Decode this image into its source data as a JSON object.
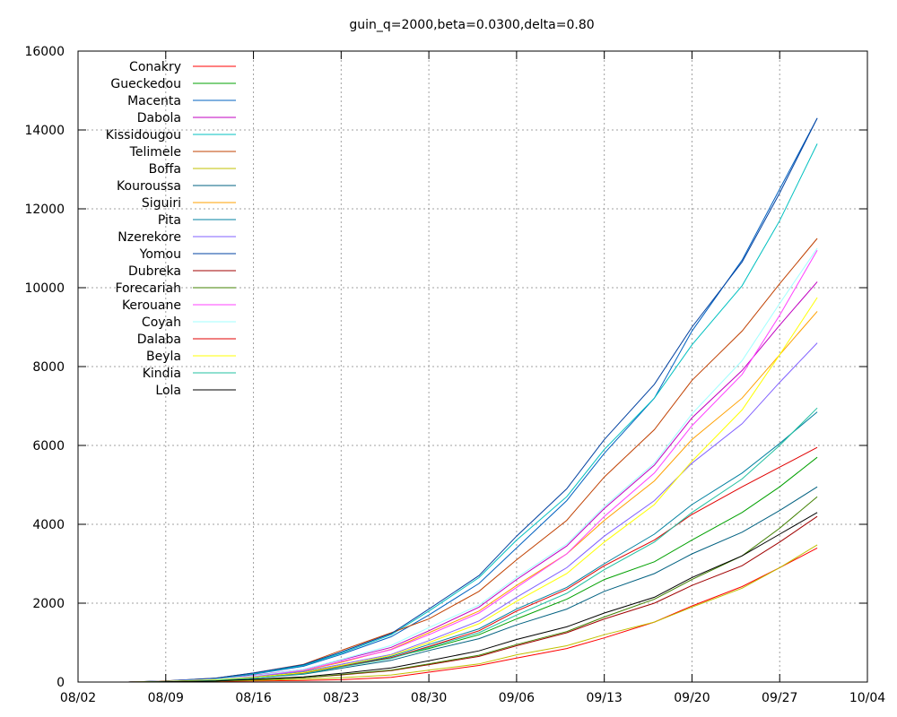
{
  "chart_data": {
    "type": "line",
    "title": "guin_q=2000,beta=0.0300,delta=0.80",
    "xlabel": "",
    "ylabel": "",
    "x_ticks": [
      "08/02",
      "08/09",
      "08/16",
      "08/23",
      "08/30",
      "09/06",
      "09/13",
      "09/20",
      "09/27",
      "10/04"
    ],
    "xlim": [
      "08/02",
      "10/04"
    ],
    "ylim": [
      0,
      16000
    ],
    "y_ticks": [
      0,
      2000,
      4000,
      6000,
      8000,
      10000,
      12000,
      14000,
      16000
    ],
    "grid": true,
    "legend_position": "top-left",
    "x": [
      "08/06",
      "08/09",
      "08/13",
      "08/16",
      "08/20",
      "08/23",
      "08/27",
      "08/30",
      "09/03",
      "09/06",
      "09/10",
      "09/13",
      "09/17",
      "09/20",
      "09/24",
      "09/27",
      "09/30"
    ],
    "series": [
      {
        "name": "Conakry",
        "color": "#ff0000",
        "values": [
          0,
          10,
          20,
          30,
          40,
          60,
          120,
          250,
          420,
          610,
          850,
          1120,
          1520,
          1930,
          2420,
          2900,
          3400
        ]
      },
      {
        "name": "Gueckedou",
        "color": "#00a000",
        "values": [
          0,
          15,
          60,
          120,
          250,
          420,
          620,
          850,
          1200,
          1600,
          2100,
          2600,
          3050,
          3600,
          4300,
          4950,
          5700
        ]
      },
      {
        "name": "Macenta",
        "color": "#0060c0",
        "values": [
          0,
          25,
          80,
          200,
          400,
          700,
          1150,
          1700,
          2500,
          3400,
          4600,
          5800,
          7200,
          8900,
          10700,
          12500,
          14300
        ]
      },
      {
        "name": "Dabola",
        "color": "#c000c0",
        "values": [
          0,
          20,
          80,
          170,
          320,
          560,
          880,
          1300,
          1900,
          2600,
          3450,
          4400,
          5500,
          6700,
          7900,
          9050,
          10150
        ]
      },
      {
        "name": "Kissidougou",
        "color": "#00c0c0",
        "values": [
          0,
          25,
          90,
          210,
          420,
          730,
          1200,
          1800,
          2650,
          3600,
          4700,
          5900,
          7200,
          8550,
          10050,
          11700,
          13650
        ]
      },
      {
        "name": "Telimele",
        "color": "#c04000",
        "values": [
          0,
          30,
          100,
          230,
          450,
          800,
          1250,
          1600,
          2300,
          3100,
          4100,
          5200,
          6400,
          7650,
          8900,
          10100,
          11250
        ]
      },
      {
        "name": "Boffa",
        "color": "#c0c000",
        "values": [
          0,
          10,
          25,
          40,
          70,
          110,
          180,
          300,
          460,
          690,
          920,
          1200,
          1520,
          1900,
          2380,
          2900,
          3480
        ]
      },
      {
        "name": "Kouroussa",
        "color": "#006080",
        "values": [
          0,
          10,
          40,
          100,
          200,
          350,
          550,
          800,
          1100,
          1450,
          1850,
          2300,
          2750,
          3250,
          3800,
          4350,
          4950
        ]
      },
      {
        "name": "Siguiri",
        "color": "#ffa000",
        "values": [
          0,
          15,
          60,
          140,
          290,
          500,
          830,
          1250,
          1800,
          2450,
          3250,
          4100,
          5100,
          6150,
          7200,
          8300,
          9400
        ]
      },
      {
        "name": "Pita",
        "color": "#0080a0",
        "values": [
          0,
          10,
          40,
          100,
          220,
          400,
          650,
          950,
          1350,
          1850,
          2400,
          3000,
          3750,
          4500,
          5300,
          6050,
          6850
        ]
      },
      {
        "name": "Nzerekore",
        "color": "#8060ff",
        "values": [
          0,
          15,
          60,
          140,
          270,
          450,
          700,
          1050,
          1550,
          2150,
          2900,
          3700,
          4600,
          5550,
          6550,
          7600,
          8600
        ]
      },
      {
        "name": "Yomou",
        "color": "#0040a0",
        "values": [
          0,
          30,
          100,
          230,
          440,
          760,
          1230,
          1850,
          2700,
          3700,
          4900,
          6150,
          7550,
          9000,
          10650,
          12400,
          14300
        ]
      },
      {
        "name": "Dubreka",
        "color": "#a00000",
        "values": [
          0,
          10,
          30,
          60,
          110,
          180,
          290,
          440,
          650,
          920,
          1250,
          1600,
          2000,
          2450,
          2950,
          3550,
          4200
        ]
      },
      {
        "name": "Forecariah",
        "color": "#408000",
        "values": [
          0,
          10,
          30,
          60,
          110,
          190,
          300,
          460,
          680,
          950,
          1280,
          1650,
          2100,
          2600,
          3200,
          3900,
          4700
        ]
      },
      {
        "name": "Kerouane",
        "color": "#ff40ff",
        "values": [
          0,
          20,
          70,
          150,
          300,
          520,
          820,
          1200,
          1750,
          2400,
          3250,
          4200,
          5300,
          6500,
          7800,
          9300,
          10950
        ]
      },
      {
        "name": "Coyah",
        "color": "#a0ffff",
        "values": [
          0,
          20,
          70,
          160,
          320,
          570,
          930,
          1380,
          1950,
          2650,
          3500,
          4450,
          5550,
          6800,
          8150,
          9600,
          11000
        ]
      },
      {
        "name": "Dalaba",
        "color": "#e00000",
        "values": [
          0,
          15,
          50,
          110,
          220,
          390,
          620,
          900,
          1300,
          1800,
          2350,
          2950,
          3600,
          4250,
          4950,
          5450,
          5950
        ]
      },
      {
        "name": "Beyla",
        "color": "#ffff00",
        "values": [
          0,
          15,
          55,
          120,
          240,
          420,
          680,
          1000,
          1480,
          2050,
          2750,
          3550,
          4500,
          5600,
          6900,
          8300,
          9750
        ]
      },
      {
        "name": "Kindia",
        "color": "#20c0a0",
        "values": [
          0,
          10,
          40,
          100,
          210,
          380,
          600,
          880,
          1250,
          1700,
          2250,
          2850,
          3550,
          4300,
          5150,
          6000,
          6950
        ]
      },
      {
        "name": "Lola",
        "color": "#000000",
        "values": [
          0,
          10,
          30,
          70,
          130,
          220,
          360,
          540,
          790,
          1080,
          1400,
          1750,
          2150,
          2650,
          3200,
          3750,
          4300
        ]
      }
    ]
  }
}
